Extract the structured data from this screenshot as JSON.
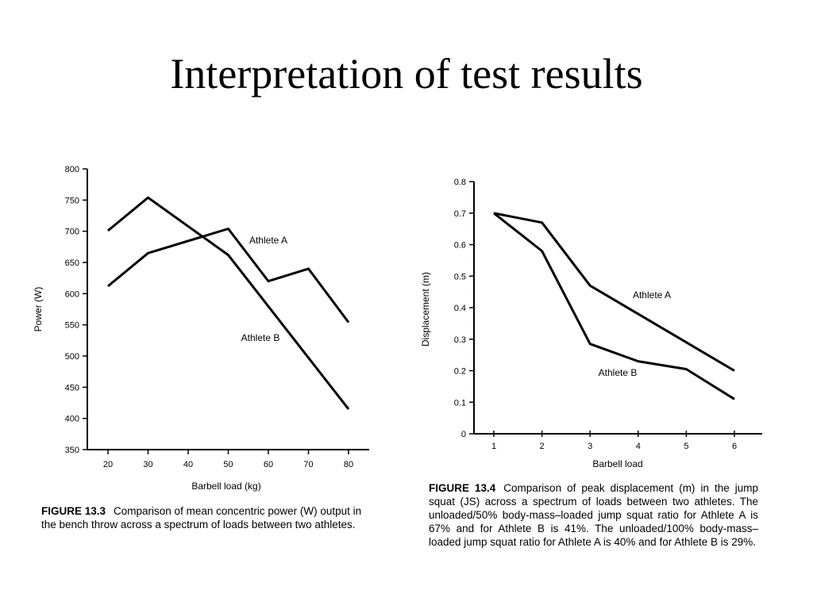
{
  "slide": {
    "title": "Interpretation of test results"
  },
  "chart_data": [
    {
      "type": "line",
      "categories": [
        "20",
        "30",
        "40",
        "50",
        "60",
        "70",
        "80"
      ],
      "x": [
        20,
        30,
        50,
        60,
        70,
        80
      ],
      "ylabel": "Power (W)",
      "xlabel": "Barbell load (kg)",
      "ylim": [
        350,
        800
      ],
      "yticks": [
        350,
        400,
        450,
        500,
        550,
        600,
        650,
        700,
        750,
        800
      ],
      "series": [
        {
          "name": "Athlete A",
          "points": [
            [
              20,
              612
            ],
            [
              30,
              665
            ],
            [
              50,
              704
            ],
            [
              60,
              620
            ],
            [
              70,
              640
            ],
            [
              80,
              554
            ]
          ]
        },
        {
          "name": "Athlete B",
          "points": [
            [
              20,
              701
            ],
            [
              30,
              754
            ],
            [
              50,
              662
            ],
            [
              80,
              415
            ]
          ]
        }
      ],
      "caption_num": "FIGURE 13.3",
      "caption_text": "Comparison of mean concentric power (W) output in the bench throw across a spectrum of loads between two athletes."
    },
    {
      "type": "line",
      "categories": [
        "1",
        "2",
        "3",
        "4",
        "5",
        "6"
      ],
      "ylabel": "Displacement (m)",
      "xlabel": "Barbell load",
      "ylim": [
        0,
        0.8
      ],
      "yticks": [
        "0",
        "0.1",
        "0.2",
        "0.3",
        "0.4",
        "0.5",
        "0.6",
        "0.7",
        "0.8"
      ],
      "series": [
        {
          "name": "Athlete A",
          "points": [
            [
              1,
              0.7
            ],
            [
              2,
              0.67
            ],
            [
              3,
              0.47
            ],
            [
              4,
              0.38
            ],
            [
              5,
              0.29
            ],
            [
              6,
              0.2
            ]
          ]
        },
        {
          "name": "Athlete B",
          "points": [
            [
              1,
              0.7
            ],
            [
              2,
              0.58
            ],
            [
              3,
              0.285
            ],
            [
              4,
              0.23
            ],
            [
              5,
              0.205
            ],
            [
              6,
              0.11
            ]
          ]
        }
      ],
      "caption_num": "FIGURE 13.4",
      "caption_text": "Comparison of peak displacement (m) in the jump squat (JS) across a spectrum of loads between two athletes. The unloaded/50% body-mass–loaded jump squat ratio for Athlete A is 67% and for Athlete B is 41%. The unloaded/100% body-mass–loaded jump squat ratio for Athlete A is 40% and for Athlete B is 29%."
    }
  ]
}
